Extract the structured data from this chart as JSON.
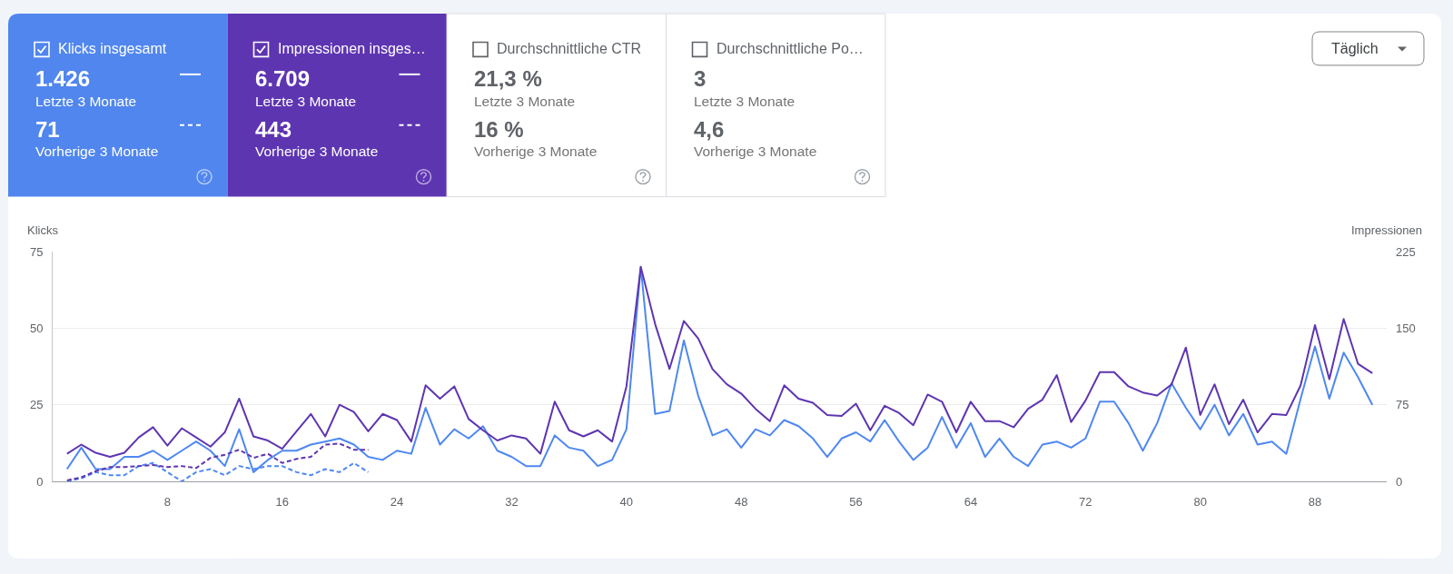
{
  "chart_data": [
    {
      "type": "other",
      "title": "Klicks insgesamt",
      "annotations": [
        "1.426",
        "Letzte 3 Monate",
        "71",
        "Vorherige 3 Monate"
      ],
      "color": "#5086ee"
    },
    {
      "type": "other",
      "title": "Impressionen insges…",
      "annotations": [
        "6.709",
        "Letzte 3 Monate",
        "443",
        "Vorherige 3 Monate"
      ],
      "color": "#5e35b1"
    },
    {
      "type": "other",
      "title": "Durchschnittliche CTR",
      "annotations": [
        "21,3 %",
        "Letzte 3 Monate",
        "16 %",
        "Vorherige 3 Monate"
      ]
    },
    {
      "type": "other",
      "title": "Durchschnittliche Po…",
      "annotations": [
        "3",
        "Letzte 3 Monate",
        "4,6",
        "Vorherige 3 Monate"
      ]
    },
    {
      "type": "line",
      "ylabel": "Klicks",
      "y2label": "Impressionen",
      "annotations": [
        "Täglich"
      ],
      "grid": "y",
      "xlim": [
        0,
        93
      ],
      "xticks": [
        8,
        16,
        24,
        32,
        40,
        48,
        56,
        64,
        72,
        80,
        88
      ],
      "ylim": [
        0,
        75
      ],
      "yticks": [
        0,
        25,
        50,
        75
      ],
      "y2lim": [
        0,
        225
      ],
      "y2ticks": [
        0,
        75,
        150,
        225
      ],
      "x": [
        1,
        2,
        3,
        4,
        5,
        6,
        7,
        8,
        9,
        10,
        11,
        12,
        13,
        14,
        15,
        16,
        17,
        18,
        19,
        20,
        21,
        22,
        23,
        24,
        25,
        26,
        27,
        28,
        29,
        30,
        31,
        32,
        33,
        34,
        35,
        36,
        37,
        38,
        39,
        40,
        41,
        42,
        43,
        44,
        45,
        46,
        47,
        48,
        49,
        50,
        51,
        52,
        53,
        54,
        55,
        56,
        57,
        58,
        59,
        60,
        61,
        62,
        63,
        64,
        65,
        66,
        67,
        68,
        69,
        70,
        71,
        72,
        73,
        74,
        75,
        76,
        77,
        78,
        79,
        80,
        81,
        82,
        83,
        84,
        85,
        86,
        87,
        88,
        89,
        90,
        91,
        92
      ],
      "series": [
        {
          "color": "#5e35b1",
          "axis": "y2",
          "line_style": "dashed",
          "x": [
            1,
            2,
            3,
            4,
            5,
            6,
            7,
            8,
            9,
            10,
            11,
            12,
            13,
            14,
            15,
            16,
            17,
            18,
            19,
            20,
            21,
            22
          ],
          "values": [
            1,
            4,
            10,
            14,
            14,
            15,
            16,
            14,
            15,
            13,
            23,
            26,
            31,
            23,
            27,
            18,
            22,
            24,
            36,
            37,
            31,
            31
          ]
        },
        {
          "color": "#4e88f2",
          "line_style": "dashed",
          "x": [
            1,
            2,
            3,
            4,
            5,
            6,
            7,
            8,
            9,
            10,
            11,
            12,
            13,
            14,
            15,
            16,
            17,
            18,
            19,
            20,
            21,
            22
          ],
          "values": [
            0,
            1,
            3,
            2,
            2,
            5,
            6,
            3,
            0,
            3,
            4,
            2,
            5,
            4,
            5,
            5,
            3,
            2,
            4,
            3,
            6,
            3
          ]
        },
        {
          "color": "#5e35b1",
          "axis": "y2",
          "line_style": "solid",
          "values": [
            27,
            36,
            28,
            24,
            28,
            43,
            53,
            35,
            52,
            43,
            34,
            48,
            81,
            44,
            40,
            32,
            49,
            66,
            44,
            75,
            68,
            49,
            66,
            60,
            39,
            94,
            81,
            93,
            61,
            50,
            40,
            45,
            42,
            27,
            78,
            50,
            44,
            50,
            39,
            93,
            210,
            154,
            110,
            157,
            140,
            110,
            95,
            86,
            71,
            59,
            94,
            81,
            77,
            65,
            64,
            76,
            50,
            74,
            67,
            55,
            85,
            78,
            48,
            78,
            59,
            59,
            53,
            71,
            80,
            104,
            58,
            79,
            107,
            107,
            93,
            87,
            84,
            95,
            131,
            65,
            95,
            56,
            80,
            48,
            66,
            65,
            94,
            153,
            100,
            159,
            115,
            106
          ]
        },
        {
          "color": "#4e88f2",
          "line_style": "solid",
          "values": [
            4,
            11,
            4,
            4,
            8,
            8,
            10,
            7,
            10,
            13,
            10,
            5,
            17,
            3,
            7,
            10,
            10,
            12,
            13,
            14,
            12,
            8,
            7,
            10,
            9,
            24,
            12,
            17,
            14,
            18,
            10,
            8,
            5,
            5,
            15,
            11,
            10,
            5,
            7,
            17,
            70,
            22,
            23,
            46,
            28,
            15,
            17,
            11,
            17,
            15,
            20,
            18,
            14,
            8,
            14,
            16,
            13,
            20,
            13,
            7,
            11,
            21,
            11,
            19,
            8,
            14,
            8,
            5,
            12,
            13,
            11,
            14,
            26,
            26,
            19,
            10,
            19,
            32,
            24,
            17,
            25,
            15,
            22,
            12,
            13,
            9,
            27,
            44,
            27,
            42,
            34,
            25
          ]
        }
      ]
    }
  ]
}
